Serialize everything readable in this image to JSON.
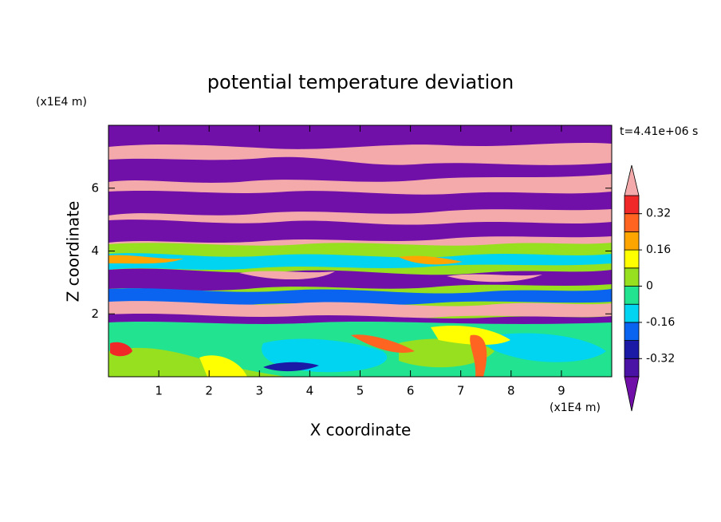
{
  "chart_data": {
    "type": "contour",
    "title": "potential temperature deviation",
    "xlabel": "X coordinate",
    "ylabel": "Z coordinate",
    "x_unit": "(x1E4 m)",
    "y_unit": "(x1E4 m)",
    "time_label": "t=4.41e+06 s",
    "xlim": [
      0,
      10
    ],
    "xticks": [
      1,
      2,
      3,
      4,
      5,
      6,
      7,
      8,
      9
    ],
    "ylim": [
      0,
      8
    ],
    "yticks": [
      2,
      4,
      6
    ],
    "colorbar": {
      "levels": [
        -0.4,
        -0.32,
        -0.24,
        -0.16,
        -0.08,
        0,
        0.08,
        0.16,
        0.24,
        0.32,
        0.4
      ],
      "colors": [
        "#4b12a6",
        "#1a1aa6",
        "#0a64f0",
        "#00d4f0",
        "#22e490",
        "#96e020",
        "#ffff00",
        "#ffa500",
        "#ff6420",
        "#f02828"
      ],
      "under_color": "#7010a8",
      "over_color": "#f4aaaa",
      "ticks": [
        -0.32,
        -0.16,
        0,
        0.16,
        0.32
      ]
    }
  }
}
